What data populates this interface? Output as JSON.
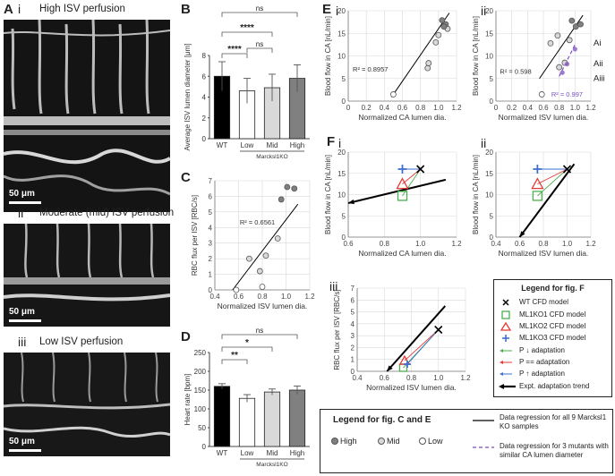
{
  "panel_a": {
    "label": "A",
    "sub_i": "i",
    "sub_ii": "ii",
    "sub_iii": "iii",
    "title_i": "High ISV perfusion",
    "title_ii": "Moderate (mid) ISV perfusion",
    "title_iii": "Low ISV perfusion",
    "scale": "50 μm"
  },
  "panel_labels": {
    "B": "B",
    "C": "C",
    "D": "D",
    "E": "E",
    "F": "F",
    "Ei": "i",
    "Eii": "ii",
    "Fi": "i",
    "Fii": "ii",
    "Fiii": "iii"
  },
  "group_label": "Marcksl1KO",
  "colors": {
    "wt": "#000000",
    "low": "#ffffff",
    "mid": "#d9d9d9",
    "high": "#808080",
    "cfd_wt": "#000000",
    "cfd_ko1": "#4caf50",
    "cfd_ko2": "#e53935",
    "cfd_ko3": "#3f6fd1",
    "regression_mutant": "#7b4fc0"
  },
  "chart_data": [
    {
      "id": "B",
      "type": "bar",
      "categories": [
        "WT",
        "Low",
        "Mid",
        "High"
      ],
      "values": [
        6.0,
        4.6,
        4.9,
        5.8
      ],
      "errors": [
        1.4,
        1.2,
        1.3,
        1.3
      ],
      "ylabel": "Average ISV lumen diameter [μm]",
      "ylim": [
        0,
        8
      ],
      "yticks": [
        0,
        2,
        4,
        6,
        8
      ],
      "significance": [
        {
          "from": "WT",
          "to": "High",
          "label": "ns"
        },
        {
          "from": "WT",
          "to": "Mid",
          "label": "****"
        },
        {
          "from": "WT",
          "to": "Low",
          "label": "****"
        },
        {
          "from": "Low",
          "to": "Mid",
          "label": "ns"
        }
      ]
    },
    {
      "id": "C",
      "type": "scatter",
      "xlabel": "Normalized ISV lumen dia.",
      "ylabel": "RBC flux per ISV [RBC/s]",
      "xlim": [
        0.4,
        1.2
      ],
      "ylim": [
        0,
        7
      ],
      "xticks": [
        0.4,
        0.6,
        0.8,
        1.0,
        1.2
      ],
      "yticks": [
        0,
        1,
        2,
        3,
        4,
        5,
        6,
        7
      ],
      "r2": "R² = 0.6561",
      "points": [
        {
          "x": 0.58,
          "y": 0.0,
          "g": "low"
        },
        {
          "x": 0.8,
          "y": 0.2,
          "g": "low"
        },
        {
          "x": 0.69,
          "y": 2.0,
          "g": "mid"
        },
        {
          "x": 0.78,
          "y": 1.2,
          "g": "mid"
        },
        {
          "x": 0.83,
          "y": 2.2,
          "g": "mid"
        },
        {
          "x": 0.93,
          "y": 3.3,
          "g": "mid"
        },
        {
          "x": 0.96,
          "y": 5.8,
          "g": "high"
        },
        {
          "x": 1.01,
          "y": 6.6,
          "g": "high"
        },
        {
          "x": 1.07,
          "y": 6.5,
          "g": "high"
        }
      ],
      "fit": [
        [
          0.55,
          -0.3
        ],
        [
          1.1,
          5.5
        ]
      ]
    },
    {
      "id": "D",
      "type": "bar",
      "categories": [
        "WT",
        "Low",
        "Mid",
        "High"
      ],
      "values": [
        160,
        128,
        145,
        150
      ],
      "errors": [
        7,
        10,
        8,
        11
      ],
      "ylabel": "Heart rate [bpm]",
      "ylim": [
        0,
        250
      ],
      "yticks": [
        0,
        50,
        100,
        150,
        200,
        250
      ],
      "significance": [
        {
          "from": "WT",
          "to": "High",
          "label": "ns"
        },
        {
          "from": "WT",
          "to": "Mid",
          "label": "*"
        },
        {
          "from": "WT",
          "to": "Low",
          "label": "**"
        }
      ]
    },
    {
      "id": "Ei",
      "type": "scatter",
      "xlabel": "Normalized CA lumen dia.",
      "ylabel": "Blood flow in CA [nL/min]",
      "xlim": [
        0,
        1.2
      ],
      "ylim": [
        0,
        20
      ],
      "xticks": [
        0,
        0.2,
        0.4,
        0.6,
        0.8,
        1.0,
        1.2
      ],
      "yticks": [
        0,
        5,
        10,
        15,
        20
      ],
      "r2": "R² = 0.8957",
      "points": [
        {
          "x": 0.5,
          "y": 1.5,
          "g": "low"
        },
        {
          "x": 0.88,
          "y": 7.3,
          "g": "mid"
        },
        {
          "x": 0.89,
          "y": 8.4,
          "g": "mid"
        },
        {
          "x": 0.97,
          "y": 13.0,
          "g": "mid"
        },
        {
          "x": 1.0,
          "y": 14.6,
          "g": "mid"
        },
        {
          "x": 1.1,
          "y": 16.0,
          "g": "mid"
        },
        {
          "x": 1.04,
          "y": 17.9,
          "g": "high"
        },
        {
          "x": 1.08,
          "y": 17.0,
          "g": "high"
        },
        {
          "x": 1.06,
          "y": 16.5,
          "g": "high"
        }
      ],
      "fit": [
        [
          0.48,
          0.9
        ],
        [
          1.12,
          19.5
        ]
      ]
    },
    {
      "id": "Eii",
      "type": "scatter",
      "xlabel": "Normalized ISV lumen dia.",
      "ylabel": "Blood flow in CA [nL/min]",
      "xlim": [
        0,
        1.2
      ],
      "ylim": [
        0,
        20
      ],
      "xticks": [
        0,
        0.2,
        0.4,
        0.6,
        0.8,
        1.0,
        1.2
      ],
      "yticks": [
        0,
        5,
        10,
        15,
        20
      ],
      "r2": "R² = 0.598",
      "r2_mutant": "R² = 0.997",
      "labels": [
        "Ai",
        "Aii",
        "Aiii"
      ],
      "points": [
        {
          "x": 0.58,
          "y": 1.5,
          "g": "low"
        },
        {
          "x": 0.69,
          "y": 12.8,
          "g": "mid"
        },
        {
          "x": 0.78,
          "y": 14.5,
          "g": "mid"
        },
        {
          "x": 0.8,
          "y": 7.5,
          "g": "mid"
        },
        {
          "x": 0.87,
          "y": 8.5,
          "g": "mid"
        },
        {
          "x": 0.93,
          "y": 13.5,
          "g": "mid"
        },
        {
          "x": 0.96,
          "y": 17.8,
          "g": "high"
        },
        {
          "x": 1.01,
          "y": 16.5,
          "g": "high"
        },
        {
          "x": 1.07,
          "y": 17.0,
          "g": "high"
        }
      ],
      "fit": [
        [
          0.55,
          5.0
        ],
        [
          1.1,
          19.0
        ]
      ],
      "fit_mutant": [
        [
          0.8,
          5.5
        ],
        [
          1.0,
          12.5
        ]
      ]
    },
    {
      "id": "Fi",
      "type": "scatter",
      "xlabel": "Normalized CA lumen dia.",
      "ylabel": "Blood flow in CA [nL/min]",
      "xlim": [
        0.6,
        1.2
      ],
      "ylim": [
        0,
        20
      ],
      "xticks": [
        0.6,
        0.8,
        1.0,
        1.2
      ],
      "yticks": [
        0,
        5,
        10,
        15,
        20
      ],
      "wt": [
        1.0,
        16.0
      ],
      "ko1": [
        0.9,
        9.7
      ],
      "ko2": [
        0.9,
        12.5
      ],
      "ko3": [
        0.9,
        16.0
      ],
      "trend": [
        [
          1.14,
          13.5
        ],
        [
          0.6,
          8.0
        ]
      ]
    },
    {
      "id": "Fii",
      "type": "scatter",
      "xlabel": "Normalized ISV lumen dia.",
      "ylabel": "Blood flow in CA [nL/min]",
      "xlim": [
        0.4,
        1.2
      ],
      "ylim": [
        0,
        20
      ],
      "xticks": [
        0.4,
        0.6,
        0.8,
        1.0,
        1.2
      ],
      "yticks": [
        0,
        5,
        10,
        15,
        20
      ],
      "wt": [
        1.0,
        16.0
      ],
      "ko1": [
        0.75,
        9.7
      ],
      "ko2": [
        0.75,
        12.5
      ],
      "ko3": [
        0.75,
        16.0
      ],
      "trend": [
        [
          1.06,
          17.2
        ],
        [
          0.6,
          0.0
        ]
      ]
    },
    {
      "id": "Fiii",
      "type": "scatter",
      "xlabel": "Normalized ISV lumen dia.",
      "ylabel": "RBC flux per ISV [RBC/s]",
      "xlim": [
        0.4,
        1.2
      ],
      "ylim": [
        0,
        7
      ],
      "xticks": [
        0.4,
        0.6,
        0.8,
        1.0,
        1.2
      ],
      "yticks": [
        0,
        1,
        2,
        3,
        4,
        5,
        6,
        7
      ],
      "wt": [
        1.0,
        3.5
      ],
      "ko1": [
        0.74,
        0.3
      ],
      "ko2": [
        0.75,
        0.9
      ],
      "ko3": [
        0.77,
        0.6
      ],
      "trend": [
        [
          1.05,
          5.5
        ],
        [
          0.62,
          0.0
        ]
      ]
    }
  ],
  "legend_f": {
    "title": "Legend for fig. F",
    "items": [
      "WT CFD model",
      "ML1KO1 CFD model",
      "ML1KO2 CFD model",
      "ML1KO3 CFD model",
      "P ↓ adaptation",
      "P == adaptation",
      "P ↑ adaptation",
      "Expt. adaptation trend"
    ]
  },
  "legend_ce": {
    "title": "Legend for fig. C and E",
    "high": "High",
    "mid": "Mid",
    "low": "Low",
    "reg_all": "Data regression for all 9 Marcksl1 KO samples",
    "reg_mutants": "Data regression for 3 mutants with similar CA lumen diameter"
  }
}
